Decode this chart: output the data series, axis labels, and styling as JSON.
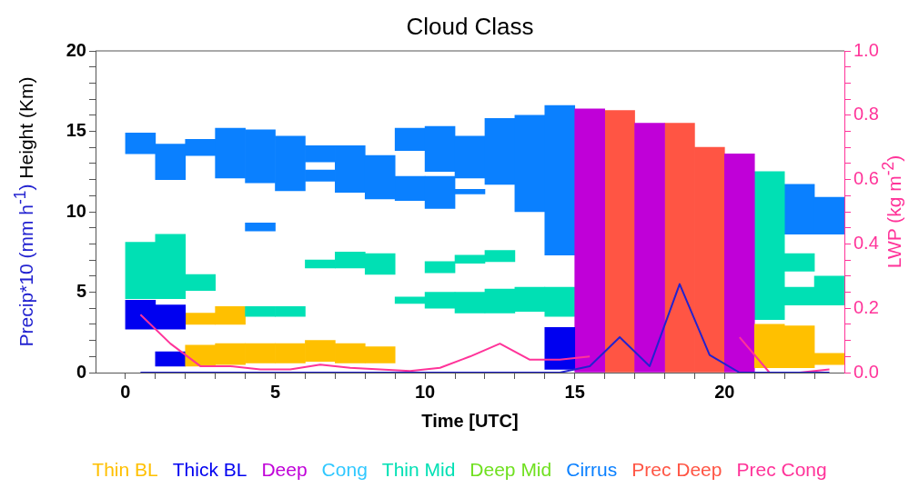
{
  "chart_data": {
    "type": "bar",
    "title": "Cloud Class",
    "xlabel": "Time [UTC]",
    "ylabel": "Height (Km)",
    "y2label": "LWP (kg m$^{-2}$)",
    "legend": "bottom",
    "x": [
      0.5,
      1.5,
      2.5,
      3.5,
      4.5,
      5.5,
      6.5,
      7.5,
      8.5,
      9.5,
      10.5,
      11.5,
      12.5,
      13.5,
      14.5,
      15.5,
      16.5,
      17.5,
      18.5,
      19.5,
      20.5,
      21.5,
      22.5,
      23.5
    ],
    "xlim": [
      -1,
      24
    ],
    "xticks": [
      0,
      {
        "value": 1,
        "label": null
      },
      {
        "value": 2,
        "label": null
      },
      {
        "value": 3,
        "label": null
      },
      {
        "value": 4,
        "label": null
      },
      5,
      {
        "value": 6,
        "label": null
      },
      {
        "value": 7,
        "label": null
      },
      {
        "value": 8,
        "label": null
      },
      {
        "value": 9,
        "label": null
      },
      10,
      {
        "value": 11,
        "label": null
      },
      {
        "value": 12,
        "label": null
      },
      {
        "value": 13,
        "label": null
      },
      {
        "value": 14,
        "label": null
      },
      15,
      {
        "value": 16,
        "label": null
      },
      {
        "value": 17,
        "label": null
      },
      {
        "value": 18,
        "label": null
      },
      {
        "value": 19,
        "label": null
      },
      20,
      {
        "value": 21,
        "label": null
      },
      {
        "value": 22,
        "label": null
      },
      {
        "value": 23,
        "label": null
      }
    ],
    "ylim": [
      0,
      20
    ],
    "yticks": [
      0,
      {
        "value": 1,
        "label": null
      },
      {
        "value": 2,
        "label": null
      },
      {
        "value": 3,
        "label": null
      },
      {
        "value": 4,
        "label": null
      },
      5,
      {
        "value": 6,
        "label": null
      },
      {
        "value": 7,
        "label": null
      },
      {
        "value": 8,
        "label": null
      },
      {
        "value": 9,
        "label": null
      },
      10,
      {
        "value": 11,
        "label": null
      },
      {
        "value": 12,
        "label": null
      },
      {
        "value": 13,
        "label": null
      },
      {
        "value": 14,
        "label": null
      },
      15,
      {
        "value": 16,
        "label": null
      },
      {
        "value": 17,
        "label": null
      },
      {
        "value": 18,
        "label": null
      },
      {
        "value": 19,
        "label": null
      },
      20
    ],
    "y2lim": [
      0,
      1
    ],
    "y2ticks": [
      {
        "value": 0,
        "label": "0.0"
      },
      {
        "value": 0.05,
        "label": null
      },
      {
        "value": 0.1,
        "label": null
      },
      {
        "value": 0.15,
        "label": null
      },
      {
        "value": 0.2,
        "label": "0.2"
      },
      {
        "value": 0.25,
        "label": null
      },
      {
        "value": 0.3,
        "label": null
      },
      {
        "value": 0.35,
        "label": null
      },
      {
        "value": 0.4,
        "label": "0.4"
      },
      {
        "value": 0.45,
        "label": null
      },
      {
        "value": 0.5,
        "label": null
      },
      {
        "value": 0.55,
        "label": null
      },
      {
        "value": 0.6,
        "label": "0.6"
      },
      {
        "value": 0.65,
        "label": null
      },
      {
        "value": 0.7,
        "label": null
      },
      {
        "value": 0.75,
        "label": null
      },
      {
        "value": 0.8,
        "label": "0.8"
      },
      {
        "value": 0.85,
        "label": null
      },
      {
        "value": 0.9,
        "label": null
      },
      {
        "value": 0.95,
        "label": null
      },
      {
        "value": 1,
        "label": "1.0"
      }
    ],
    "series": [
      {
        "name": "Thin BL",
        "color": "#ffc000",
        "base": [
          null,
          null,
          0.4,
          0.5,
          0.6,
          0.6,
          0.7,
          0.6,
          0.6,
          null,
          null,
          null,
          null,
          null,
          null,
          null,
          null,
          null,
          null,
          null,
          null,
          0.3,
          0.3,
          0.5
        ],
        "values": [
          null,
          null,
          1.3,
          1.3,
          1.2,
          1.2,
          1.3,
          1.2,
          1.0,
          null,
          null,
          null,
          null,
          null,
          null,
          null,
          null,
          null,
          null,
          null,
          null,
          2.7,
          2.6,
          0.7
        ]
      },
      {
        "name": "Thick BL",
        "color": "#0000f0",
        "base": [
          2.7,
          2.7,
          null,
          null,
          null,
          null,
          null,
          null,
          null,
          null,
          null,
          null,
          null,
          null,
          0.2,
          null,
          null,
          null,
          null,
          null,
          null,
          null,
          null,
          null
        ],
        "values": [
          1.8,
          1.5,
          null,
          null,
          null,
          null,
          null,
          null,
          null,
          null,
          null,
          null,
          null,
          null,
          2.6,
          null,
          null,
          null,
          null,
          null,
          null,
          null,
          null,
          null
        ]
      },
      {
        "name": "Deep",
        "color": "#c000d8",
        "base": [
          null,
          null,
          null,
          null,
          null,
          null,
          null,
          null,
          null,
          null,
          null,
          null,
          null,
          null,
          null,
          0,
          null,
          0,
          null,
          null,
          0,
          null,
          null,
          null
        ],
        "values": [
          null,
          null,
          null,
          null,
          null,
          null,
          null,
          null,
          null,
          null,
          null,
          null,
          null,
          null,
          null,
          16.4,
          null,
          15.5,
          null,
          null,
          13.6,
          null,
          null,
          null
        ]
      },
      {
        "name": "Cong",
        "color": "#30c8ff",
        "values": [
          null,
          null,
          null,
          null,
          null,
          null,
          null,
          null,
          null,
          null,
          null,
          null,
          null,
          null,
          null,
          null,
          null,
          null,
          null,
          null,
          null,
          null,
          null,
          null
        ]
      },
      {
        "name": "Thin Mid",
        "color": "#00e0b4",
        "base": [
          4.6,
          4.6,
          5.1,
          null,
          3.5,
          3.5,
          6.5,
          6.5,
          6.1,
          4.3,
          6.2,
          6.8,
          6.9,
          3.8,
          3.5,
          null,
          null,
          null,
          null,
          null,
          null,
          3.3,
          6.3,
          4.2
        ],
        "values": [
          3.5,
          4.0,
          1.0,
          null,
          0.6,
          0.6,
          0.5,
          1.0,
          1.3,
          0.4,
          0.7,
          0.5,
          0.7,
          1.5,
          1.8,
          null,
          null,
          null,
          null,
          null,
          null,
          9.2,
          1.1,
          1.8
        ]
      },
      {
        "name": "Deep Mid",
        "color": "#70e020",
        "values": [
          null,
          null,
          null,
          null,
          null,
          null,
          null,
          null,
          null,
          null,
          null,
          null,
          null,
          null,
          null,
          null,
          null,
          null,
          null,
          null,
          null,
          null,
          null,
          null
        ]
      },
      {
        "name": "Cirrus",
        "color": "#0a80ff",
        "base": [
          13.6,
          12.0,
          13.5,
          12.1,
          11.8,
          11.3,
          13.1,
          11.2,
          10.8,
          13.8,
          12.5,
          12.1,
          11.7,
          10.0,
          7.3,
          null,
          null,
          null,
          null,
          null,
          null,
          null,
          8.6,
          8.6
        ],
        "values": [
          1.3,
          2.2,
          1.0,
          3.1,
          3.3,
          3.4,
          1.0,
          2.9,
          2.7,
          1.4,
          2.8,
          2.6,
          4.1,
          6.0,
          9.3,
          null,
          null,
          null,
          null,
          null,
          null,
          null,
          3.1,
          2.3
        ]
      },
      {
        "name": "Prec Deep",
        "color": "#ff5544",
        "base": [
          null,
          null,
          null,
          null,
          null,
          null,
          null,
          null,
          null,
          null,
          null,
          null,
          null,
          null,
          null,
          null,
          0,
          null,
          0,
          0,
          null,
          null,
          null,
          null
        ],
        "values": [
          null,
          null,
          null,
          null,
          null,
          null,
          null,
          null,
          null,
          null,
          null,
          null,
          null,
          null,
          null,
          null,
          16.3,
          null,
          15.5,
          14.0,
          null,
          null,
          null,
          null
        ]
      },
      {
        "name": "Prec Cong",
        "color": "#ff3399",
        "values": [
          null,
          null,
          null,
          null,
          null,
          null,
          null,
          null,
          null,
          null,
          null,
          null,
          null,
          null,
          null,
          null,
          null,
          null,
          null,
          null,
          null,
          null,
          null,
          null
        ]
      },
      {
        "color": "#ffc000",
        "base": [
          null,
          null,
          3.0,
          3.0,
          null,
          null,
          null,
          null,
          null,
          null,
          null,
          null,
          null,
          null,
          null,
          null,
          null,
          null,
          null,
          null,
          null,
          null,
          null,
          null
        ],
        "values": [
          null,
          null,
          0.7,
          1.1,
          null,
          null,
          null,
          null,
          null,
          null,
          null,
          null,
          null,
          null,
          null,
          null,
          null,
          null,
          null,
          null,
          null,
          null,
          null,
          null
        ]
      },
      {
        "color": "#0000f0",
        "base": [
          null,
          0.4,
          null,
          null,
          null,
          null,
          null,
          null,
          null,
          null,
          null,
          null,
          null,
          null,
          null,
          null,
          null,
          null,
          null,
          null,
          null,
          null,
          null,
          null
        ],
        "values": [
          null,
          0.9,
          null,
          null,
          null,
          null,
          null,
          null,
          null,
          null,
          null,
          null,
          null,
          null,
          null,
          null,
          null,
          null,
          null,
          null,
          null,
          null,
          null,
          null
        ]
      },
      {
        "color": "#00e0b4",
        "base": [
          null,
          null,
          null,
          null,
          null,
          null,
          null,
          null,
          null,
          null,
          4.0,
          3.7,
          3.7,
          null,
          null,
          null,
          null,
          null,
          null,
          null,
          null,
          null,
          4.2,
          null
        ],
        "values": [
          null,
          null,
          null,
          null,
          null,
          null,
          null,
          null,
          null,
          null,
          1.0,
          1.3,
          1.5,
          null,
          null,
          null,
          null,
          null,
          null,
          null,
          null,
          null,
          1.1,
          null
        ]
      },
      {
        "color": "#0a80ff",
        "base": [
          null,
          null,
          null,
          null,
          8.8,
          null,
          11.9,
          null,
          null,
          10.7,
          10.2,
          11.1,
          null,
          null,
          null,
          null,
          null,
          null,
          null,
          null,
          null,
          null,
          null,
          null
        ],
        "values": [
          null,
          null,
          null,
          null,
          0.5,
          null,
          0.7,
          null,
          null,
          1.5,
          2.0,
          0.3,
          null,
          null,
          null,
          null,
          null,
          null,
          null,
          null,
          null,
          null,
          null,
          null
        ]
      },
      {
        "type": "line",
        "name": "Precip*10 (mm h$^{-1}$)",
        "color": "#2222d0",
        "values": [
          0,
          0,
          0,
          0,
          0,
          0,
          0,
          0,
          0,
          0,
          0,
          0,
          0,
          0,
          0,
          0.4,
          2.2,
          0.4,
          5.5,
          1.1,
          0,
          0,
          0,
          0
        ]
      },
      {
        "type": "line",
        "axis": "y2",
        "color": "#ff3399",
        "values": [
          0.18,
          0.09,
          0.02,
          0.02,
          0.01,
          0.01,
          0.025,
          0.015,
          0.01,
          0.005,
          0.015,
          0.05,
          0.09,
          0.04,
          0.04,
          0.05,
          null,
          null,
          null,
          null,
          0.11,
          0,
          0,
          0.01
        ]
      }
    ]
  }
}
